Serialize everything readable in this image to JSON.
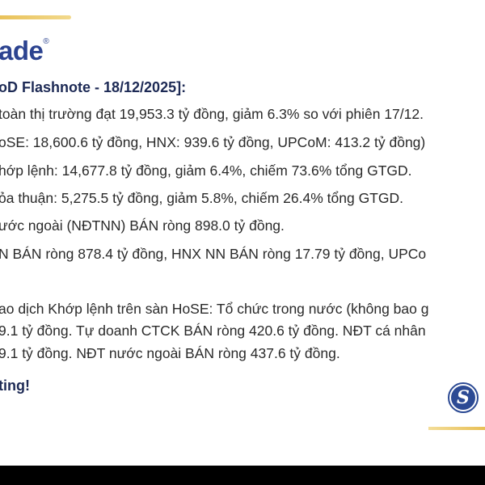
{
  "brand": {
    "text": "ade",
    "mark": "®"
  },
  "title": "oD Flashnote - 18/12/2025]:",
  "lines": [
    "toàn thị trường đạt 19,953.3 tỷ đồng, giảm 6.3% so với phiên 17/12.",
    "oSE: 18,600.6 tỷ đồng, HNX: 939.6 tỷ đồng, UPCoM: 413.2 tỷ đồng)",
    "hớp lệnh: 14,677.8 tỷ đồng, giảm 6.4%, chiếm 73.6% tổng GTGD.",
    "ỏa thuận: 5,275.5 tỷ đồng, giảm 5.8%, chiếm 26.4% tổng GTGD.",
    "ước ngoài (NĐTNN) BÁN ròng 898.0 tỷ đồng.",
    "N BÁN ròng 878.4 tỷ đồng, HNX NN BÁN ròng 17.79 tỷ đồng, UPCo",
    "ao dịch Khớp lệnh trên sàn HoSE: Tổ chức trong nước (không bao g",
    "9.1 tỷ đồng. Tự doanh CTCK BÁN ròng 420.6 tỷ đồng. NĐT cá nhân",
    "9.1 tỷ đồng. NĐT nước ngoài BÁN ròng 437.6 tỷ đồng."
  ],
  "closing": "ting!",
  "logo": {
    "letter": "S",
    "icon": "company-s-logo-icon"
  },
  "colors": {
    "navy": "#1d2a55",
    "brand_blue": "#2c4390",
    "gold": "#e9c25a"
  }
}
